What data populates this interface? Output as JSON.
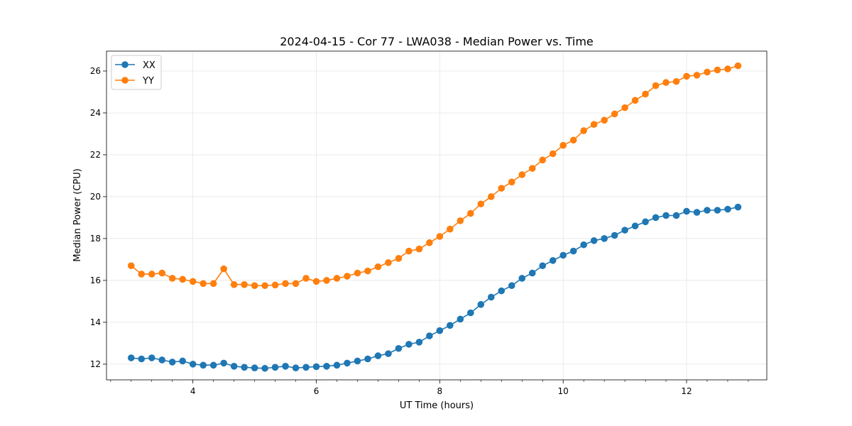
{
  "chart_data": {
    "type": "line",
    "title": "2024-04-15 - Cor 77 - LWA038 - Median Power vs. Time",
    "xlabel": "UT Time (hours)",
    "ylabel": "Median Power (CPU)",
    "xlim": [
      2.6,
      13.3
    ],
    "ylim": [
      11.25,
      26.95
    ],
    "xticks": [
      4,
      6,
      8,
      10,
      12
    ],
    "xticks_minor_step": 0.333333,
    "yticks": [
      12,
      14,
      16,
      18,
      20,
      22,
      24,
      26
    ],
    "grid": true,
    "legend_position": "top-left",
    "x": [
      3.0,
      3.1667,
      3.3333,
      3.5,
      3.6667,
      3.8333,
      4.0,
      4.1667,
      4.3333,
      4.5,
      4.6667,
      4.8333,
      5.0,
      5.1667,
      5.3333,
      5.5,
      5.6667,
      5.8333,
      6.0,
      6.1667,
      6.3333,
      6.5,
      6.6667,
      6.8333,
      7.0,
      7.1667,
      7.3333,
      7.5,
      7.6667,
      7.8333,
      8.0,
      8.1667,
      8.3333,
      8.5,
      8.6667,
      8.8333,
      9.0,
      9.1667,
      9.3333,
      9.5,
      9.6667,
      9.8333,
      10.0,
      10.1667,
      10.3333,
      10.5,
      10.6667,
      10.8333,
      11.0,
      11.1667,
      11.3333,
      11.5,
      11.6667,
      11.8333,
      12.0,
      12.1667,
      12.3333,
      12.5,
      12.6667,
      12.8333
    ],
    "series": [
      {
        "name": "XX",
        "color": "#1f77b4",
        "values": [
          12.3,
          12.25,
          12.3,
          12.2,
          12.1,
          12.15,
          12.0,
          11.95,
          11.95,
          12.05,
          11.9,
          11.85,
          11.82,
          11.8,
          11.85,
          11.9,
          11.82,
          11.85,
          11.88,
          11.9,
          11.95,
          12.05,
          12.15,
          12.25,
          12.4,
          12.5,
          12.75,
          12.95,
          13.05,
          13.35,
          13.6,
          13.85,
          14.15,
          14.45,
          14.85,
          15.2,
          15.5,
          15.75,
          16.1,
          16.35,
          16.7,
          16.95,
          17.2,
          17.4,
          17.7,
          17.9,
          18.0,
          18.15,
          18.4,
          18.6,
          18.8,
          19.0,
          19.1,
          19.1,
          19.3,
          19.25,
          19.35,
          19.35,
          19.4,
          19.5
        ]
      },
      {
        "name": "YY",
        "color": "#ff7f0e",
        "values": [
          16.7,
          16.3,
          16.3,
          16.35,
          16.1,
          16.05,
          15.95,
          15.85,
          15.85,
          16.55,
          15.8,
          15.8,
          15.75,
          15.75,
          15.78,
          15.85,
          15.85,
          16.1,
          15.95,
          16.0,
          16.1,
          16.2,
          16.35,
          16.45,
          16.65,
          16.85,
          17.05,
          17.4,
          17.5,
          17.8,
          18.1,
          18.45,
          18.85,
          19.2,
          19.65,
          20.0,
          20.4,
          20.7,
          21.05,
          21.35,
          21.75,
          22.05,
          22.45,
          22.7,
          23.15,
          23.45,
          23.65,
          23.95,
          24.25,
          24.6,
          24.9,
          25.3,
          25.45,
          25.5,
          25.75,
          25.8,
          25.95,
          26.05,
          26.1,
          26.25
        ]
      }
    ]
  }
}
